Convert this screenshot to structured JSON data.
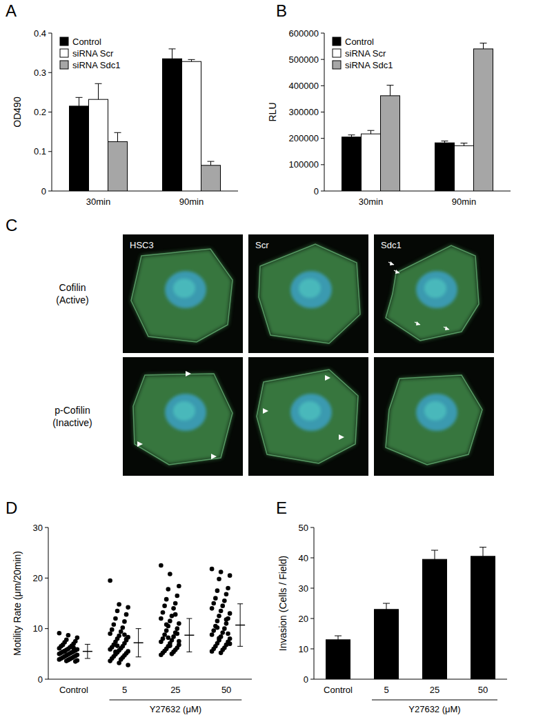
{
  "chart_data": [
    {
      "type": "bar",
      "title": "A",
      "y_label": "OD490",
      "categories": [
        "30min",
        "90min"
      ],
      "series": [
        {
          "name": "Control",
          "color": "#000000",
          "values": [
            0.215,
            0.335
          ],
          "errors": [
            0.022,
            0.025
          ]
        },
        {
          "name": "siRNA Scr",
          "color": "#ffffff",
          "values": [
            0.232,
            0.328
          ],
          "errors": [
            0.04,
            0.005
          ]
        },
        {
          "name": "siRNA Sdc1",
          "color": "#a6a6a6",
          "values": [
            0.125,
            0.065
          ],
          "errors": [
            0.023,
            0.01
          ]
        }
      ],
      "ylim": [
        0,
        0.4
      ],
      "yticks": [
        0,
        0.1,
        0.2,
        0.3,
        0.4
      ],
      "grid": false,
      "legend": "upper left"
    },
    {
      "type": "bar",
      "title": "B",
      "y_label": "RLU",
      "categories": [
        "30min",
        "90min"
      ],
      "series": [
        {
          "name": "Control",
          "color": "#000000",
          "values": [
            205000,
            183000
          ],
          "errors": [
            8000,
            7000
          ]
        },
        {
          "name": "siRNA Scr",
          "color": "#ffffff",
          "values": [
            217000,
            172000
          ],
          "errors": [
            13000,
            10000
          ]
        },
        {
          "name": "siRNA Sdc1",
          "color": "#a6a6a6",
          "values": [
            362000,
            540000
          ],
          "errors": [
            40000,
            22000
          ]
        }
      ],
      "ylim": [
        0,
        600000
      ],
      "yticks": [
        0,
        100000,
        200000,
        300000,
        400000,
        500000,
        600000
      ],
      "grid": false,
      "legend": "upper left"
    },
    {
      "type": "scatter",
      "title": "D",
      "y_label": "Motility Rate (μm/20min)",
      "annotation": "Y27632 (μM)",
      "categories": [
        "Control",
        "5",
        "25",
        "50"
      ],
      "color": "#000000",
      "marker": "circle",
      "points": [
        [
          9.1,
          8.7,
          8.2,
          7.8,
          7.5,
          7.3,
          7.0,
          6.8,
          6.6,
          6.5,
          6.3,
          6.1,
          6.0,
          5.9,
          5.8,
          5.7,
          5.6,
          5.5,
          5.4,
          5.3,
          5.2,
          5.1,
          5.0,
          4.9,
          4.8,
          4.7,
          4.6,
          4.5,
          4.4,
          4.3,
          4.2,
          4.1,
          4.0,
          3.9,
          3.8,
          3.7,
          3.6,
          3.5,
          5.5,
          6.2
        ],
        [
          19.5,
          14.8,
          14.2,
          13.5,
          12.8,
          12.0,
          11.4,
          10.8,
          10.2,
          9.8,
          9.4,
          9.0,
          8.6,
          8.3,
          8.0,
          7.7,
          7.4,
          7.1,
          6.8,
          6.5,
          6.3,
          6.1,
          5.9,
          5.7,
          5.5,
          5.3,
          5.1,
          4.9,
          4.7,
          4.5,
          4.3,
          4.1,
          3.9,
          3.6,
          3.2,
          2.8,
          6.6,
          7.9,
          5.4,
          8.8
        ],
        [
          22.5,
          20.8,
          18.4,
          17.8,
          16.5,
          15.8,
          15.0,
          14.5,
          14.0,
          13.2,
          12.5,
          12.0,
          11.5,
          11.0,
          10.5,
          10.0,
          9.6,
          9.2,
          8.8,
          8.4,
          8.0,
          7.7,
          7.4,
          7.1,
          6.8,
          6.5,
          6.2,
          6.0,
          5.8,
          5.6,
          5.4,
          5.2,
          5.0,
          4.8,
          6.6,
          7.5,
          8.2,
          9.0,
          10.8,
          12.8
        ],
        [
          21.8,
          21.2,
          20.5,
          19.8,
          18.0,
          17.5,
          16.8,
          16.0,
          15.5,
          15.0,
          14.5,
          14.0,
          13.5,
          13.0,
          12.5,
          12.0,
          11.5,
          11.0,
          10.5,
          10.0,
          9.6,
          9.2,
          8.8,
          8.4,
          8.0,
          7.7,
          7.4,
          7.1,
          6.8,
          6.5,
          6.2,
          6.0,
          5.8,
          5.5,
          5.2,
          7.0,
          8.1,
          9.0,
          10.2,
          11.8
        ]
      ],
      "means": [
        5.5,
        7.2,
        8.7,
        10.7
      ],
      "errors": [
        1.4,
        2.8,
        3.3,
        4.2
      ],
      "ylim": [
        0,
        30
      ],
      "yticks": [
        0,
        10,
        20,
        30
      ],
      "grid": false
    },
    {
      "type": "bar",
      "title": "E",
      "y_label": "Invasion (Cells / Field)",
      "annotation": "Y27632 (μM)",
      "categories": [
        "Control",
        "5",
        "25",
        "50"
      ],
      "color": "#000000",
      "values": [
        13,
        23,
        39.5,
        40.5
      ],
      "errors": [
        1.3,
        2,
        3,
        3
      ],
      "ylim": [
        0,
        50
      ],
      "yticks": [
        0,
        10,
        20,
        30,
        40,
        50
      ],
      "grid": false
    }
  ],
  "micrographs": {
    "title": "C",
    "columns": [
      "HSC3",
      "Scr",
      "Sdc1"
    ],
    "rows": [
      [
        "Cofilin",
        "(Active)"
      ],
      [
        "p-Cofilin",
        "(Inactive)"
      ]
    ]
  }
}
